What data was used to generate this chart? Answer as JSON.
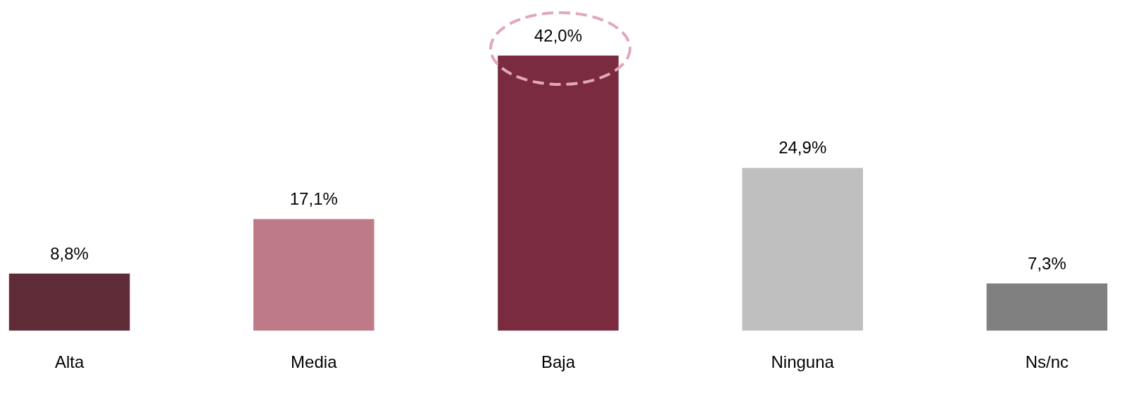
{
  "chart_data": {
    "type": "bar",
    "categories": [
      "Alta",
      "Media",
      "Baja",
      "Ninguna",
      "Ns/nc"
    ],
    "values": [
      8.8,
      17.1,
      42.0,
      24.9,
      7.3
    ],
    "colors": [
      "#5e2b37",
      "#bf7a88",
      "#7b2b3f",
      "#bfbfbf",
      "#808080"
    ],
    "value_labels": [
      "8,8%",
      "17,1%",
      "42,0%",
      "24,9%",
      "7,3%"
    ],
    "grid": false,
    "legend": false
  }
}
